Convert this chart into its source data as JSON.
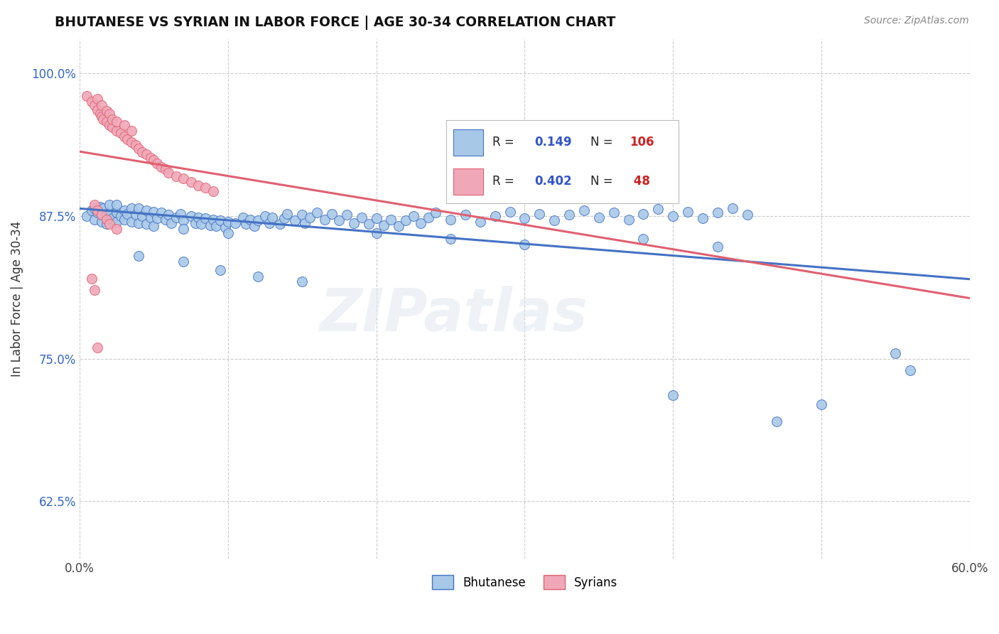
{
  "title": "BHUTANESE VS SYRIAN IN LABOR FORCE | AGE 30-34 CORRELATION CHART",
  "source_text": "Source: ZipAtlas.com",
  "ylabel": "In Labor Force | Age 30-34",
  "xlim": [
    0.0,
    0.6
  ],
  "ylim": [
    0.575,
    1.03
  ],
  "xticks": [
    0.0,
    0.1,
    0.2,
    0.3,
    0.4,
    0.5,
    0.6
  ],
  "xticklabels": [
    "0.0%",
    "",
    "",
    "",
    "",
    "",
    "60.0%"
  ],
  "yticks": [
    0.625,
    0.75,
    0.875,
    1.0
  ],
  "yticklabels": [
    "62.5%",
    "75.0%",
    "87.5%",
    "100.0%"
  ],
  "blue_color": "#a8c8e8",
  "pink_color": "#f0a8b8",
  "blue_line_color": "#4472c4",
  "pink_line_color": "#e06070",
  "blue_scatter": [
    [
      0.005,
      0.875
    ],
    [
      0.008,
      0.88
    ],
    [
      0.01,
      0.872
    ],
    [
      0.01,
      0.882
    ],
    [
      0.012,
      0.878
    ],
    [
      0.014,
      0.883
    ],
    [
      0.015,
      0.87
    ],
    [
      0.015,
      0.876
    ],
    [
      0.016,
      0.882
    ],
    [
      0.018,
      0.875
    ],
    [
      0.018,
      0.868
    ],
    [
      0.02,
      0.878
    ],
    [
      0.02,
      0.885
    ],
    [
      0.022,
      0.873
    ],
    [
      0.025,
      0.878
    ],
    [
      0.025,
      0.885
    ],
    [
      0.025,
      0.87
    ],
    [
      0.028,
      0.875
    ],
    [
      0.03,
      0.88
    ],
    [
      0.03,
      0.872
    ],
    [
      0.032,
      0.877
    ],
    [
      0.035,
      0.882
    ],
    [
      0.035,
      0.87
    ],
    [
      0.038,
      0.876
    ],
    [
      0.04,
      0.882
    ],
    [
      0.04,
      0.869
    ],
    [
      0.042,
      0.875
    ],
    [
      0.045,
      0.88
    ],
    [
      0.045,
      0.868
    ],
    [
      0.048,
      0.874
    ],
    [
      0.05,
      0.879
    ],
    [
      0.05,
      0.866
    ],
    [
      0.052,
      0.873
    ],
    [
      0.055,
      0.878
    ],
    [
      0.058,
      0.872
    ],
    [
      0.06,
      0.876
    ],
    [
      0.062,
      0.869
    ],
    [
      0.065,
      0.874
    ],
    [
      0.068,
      0.877
    ],
    [
      0.07,
      0.871
    ],
    [
      0.07,
      0.864
    ],
    [
      0.075,
      0.875
    ],
    [
      0.078,
      0.869
    ],
    [
      0.08,
      0.874
    ],
    [
      0.082,
      0.868
    ],
    [
      0.085,
      0.873
    ],
    [
      0.088,
      0.867
    ],
    [
      0.09,
      0.872
    ],
    [
      0.092,
      0.866
    ],
    [
      0.095,
      0.871
    ],
    [
      0.098,
      0.865
    ],
    [
      0.1,
      0.87
    ],
    [
      0.1,
      0.86
    ],
    [
      0.105,
      0.869
    ],
    [
      0.11,
      0.874
    ],
    [
      0.112,
      0.868
    ],
    [
      0.115,
      0.872
    ],
    [
      0.118,
      0.866
    ],
    [
      0.12,
      0.871
    ],
    [
      0.125,
      0.875
    ],
    [
      0.128,
      0.869
    ],
    [
      0.13,
      0.874
    ],
    [
      0.135,
      0.868
    ],
    [
      0.138,
      0.873
    ],
    [
      0.14,
      0.877
    ],
    [
      0.145,
      0.871
    ],
    [
      0.15,
      0.876
    ],
    [
      0.152,
      0.869
    ],
    [
      0.155,
      0.874
    ],
    [
      0.16,
      0.878
    ],
    [
      0.165,
      0.872
    ],
    [
      0.17,
      0.877
    ],
    [
      0.175,
      0.871
    ],
    [
      0.18,
      0.876
    ],
    [
      0.185,
      0.869
    ],
    [
      0.19,
      0.874
    ],
    [
      0.195,
      0.868
    ],
    [
      0.2,
      0.873
    ],
    [
      0.205,
      0.867
    ],
    [
      0.21,
      0.872
    ],
    [
      0.215,
      0.866
    ],
    [
      0.22,
      0.871
    ],
    [
      0.225,
      0.875
    ],
    [
      0.23,
      0.869
    ],
    [
      0.235,
      0.874
    ],
    [
      0.24,
      0.878
    ],
    [
      0.25,
      0.872
    ],
    [
      0.26,
      0.876
    ],
    [
      0.27,
      0.87
    ],
    [
      0.28,
      0.875
    ],
    [
      0.29,
      0.879
    ],
    [
      0.3,
      0.873
    ],
    [
      0.31,
      0.877
    ],
    [
      0.32,
      0.871
    ],
    [
      0.33,
      0.876
    ],
    [
      0.34,
      0.88
    ],
    [
      0.35,
      0.874
    ],
    [
      0.36,
      0.878
    ],
    [
      0.37,
      0.872
    ],
    [
      0.38,
      0.877
    ],
    [
      0.39,
      0.881
    ],
    [
      0.4,
      0.875
    ],
    [
      0.41,
      0.879
    ],
    [
      0.42,
      0.873
    ],
    [
      0.43,
      0.878
    ],
    [
      0.44,
      0.882
    ],
    [
      0.45,
      0.876
    ],
    [
      0.04,
      0.84
    ],
    [
      0.07,
      0.835
    ],
    [
      0.095,
      0.828
    ],
    [
      0.12,
      0.822
    ],
    [
      0.15,
      0.818
    ],
    [
      0.2,
      0.86
    ],
    [
      0.25,
      0.855
    ],
    [
      0.3,
      0.85
    ],
    [
      0.38,
      0.855
    ],
    [
      0.43,
      0.848
    ],
    [
      0.55,
      0.755
    ],
    [
      0.56,
      0.74
    ],
    [
      0.4,
      0.718
    ],
    [
      0.5,
      0.71
    ],
    [
      0.47,
      0.695
    ]
  ],
  "pink_scatter": [
    [
      0.005,
      0.98
    ],
    [
      0.008,
      0.975
    ],
    [
      0.01,
      0.972
    ],
    [
      0.012,
      0.968
    ],
    [
      0.012,
      0.978
    ],
    [
      0.014,
      0.965
    ],
    [
      0.015,
      0.962
    ],
    [
      0.015,
      0.972
    ],
    [
      0.016,
      0.96
    ],
    [
      0.018,
      0.958
    ],
    [
      0.018,
      0.967
    ],
    [
      0.02,
      0.955
    ],
    [
      0.02,
      0.965
    ],
    [
      0.022,
      0.953
    ],
    [
      0.022,
      0.96
    ],
    [
      0.025,
      0.95
    ],
    [
      0.025,
      0.958
    ],
    [
      0.028,
      0.948
    ],
    [
      0.03,
      0.945
    ],
    [
      0.03,
      0.955
    ],
    [
      0.032,
      0.942
    ],
    [
      0.035,
      0.94
    ],
    [
      0.035,
      0.95
    ],
    [
      0.038,
      0.937
    ],
    [
      0.04,
      0.934
    ],
    [
      0.042,
      0.931
    ],
    [
      0.045,
      0.929
    ],
    [
      0.048,
      0.926
    ],
    [
      0.05,
      0.924
    ],
    [
      0.052,
      0.921
    ],
    [
      0.055,
      0.918
    ],
    [
      0.058,
      0.916
    ],
    [
      0.06,
      0.913
    ],
    [
      0.065,
      0.91
    ],
    [
      0.07,
      0.908
    ],
    [
      0.075,
      0.905
    ],
    [
      0.08,
      0.902
    ],
    [
      0.085,
      0.9
    ],
    [
      0.09,
      0.897
    ],
    [
      0.01,
      0.885
    ],
    [
      0.012,
      0.88
    ],
    [
      0.015,
      0.876
    ],
    [
      0.018,
      0.872
    ],
    [
      0.02,
      0.868
    ],
    [
      0.025,
      0.864
    ],
    [
      0.008,
      0.82
    ],
    [
      0.01,
      0.81
    ],
    [
      0.012,
      0.76
    ]
  ],
  "legend_label_blue": "Bhutanese",
  "legend_label_pink": "Syrians",
  "watermark": "ZIPatlas"
}
